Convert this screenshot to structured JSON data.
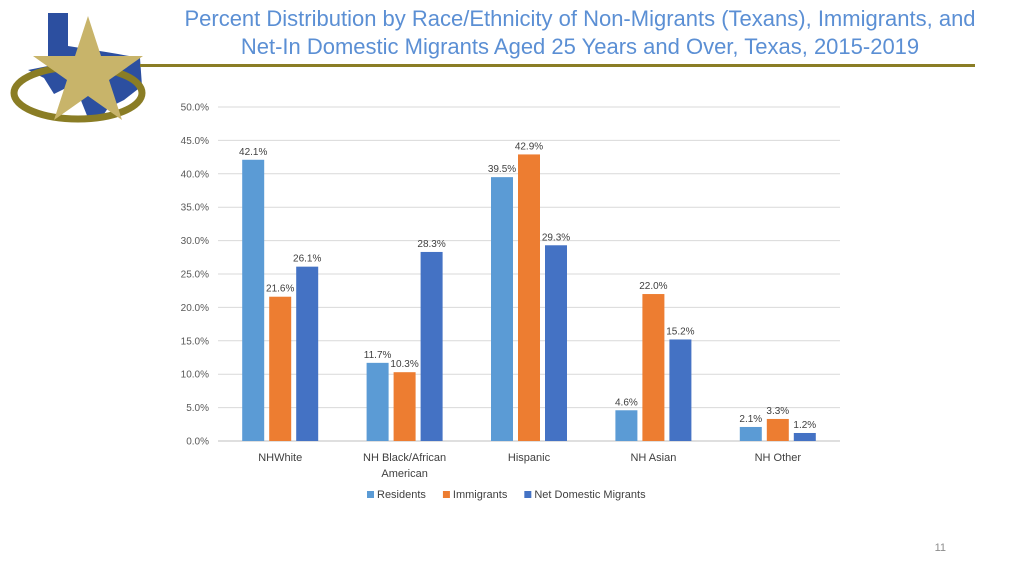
{
  "title_line1": "Percent Distribution by Race/Ethnicity of Non-Migrants (Texans), Immigrants, and",
  "title_line2": "Net-In Domestic Migrants Aged 25 Years and Over, Texas, 2015-2019",
  "page_number": "11",
  "logo": {
    "icon": "texas-star-logo-icon",
    "colors": {
      "star": "#c8b46a",
      "state": "#2c4fa0",
      "swoosh": "#8a7d25"
    }
  },
  "chart_data": {
    "type": "bar",
    "title": "Percent Distribution by Race/Ethnicity of Non-Migrants (Texans), Immigrants, and Net-In Domestic Migrants Aged 25 Years and Over, Texas, 2015-2019",
    "categories": [
      "NHWhite",
      "NH Black/African American",
      "Hispanic",
      "NH Asian",
      "NH Other"
    ],
    "category_lines": [
      [
        "NHWhite"
      ],
      [
        "NH Black/African",
        "American"
      ],
      [
        "Hispanic"
      ],
      [
        "NH Asian"
      ],
      [
        "NH Other"
      ]
    ],
    "series": [
      {
        "name": "Residents",
        "color": "#5b9bd5",
        "values": [
          42.1,
          11.7,
          39.5,
          4.6,
          2.1
        ]
      },
      {
        "name": "Immigrants",
        "color": "#ed7d31",
        "values": [
          21.6,
          10.3,
          42.9,
          22.0,
          3.3
        ]
      },
      {
        "name": "Net Domestic Migrants",
        "color": "#4472c4",
        "values": [
          26.1,
          28.3,
          29.3,
          15.2,
          1.2
        ]
      }
    ],
    "ylim": [
      0,
      50
    ],
    "yticks": [
      "0.0%",
      "5.0%",
      "10.0%",
      "15.0%",
      "20.0%",
      "25.0%",
      "30.0%",
      "35.0%",
      "40.0%",
      "45.0%",
      "50.0%"
    ],
    "ytick_values": [
      0,
      5,
      10,
      15,
      20,
      25,
      30,
      35,
      40,
      45,
      50
    ],
    "data_labels": [
      [
        "42.1%",
        "11.7%",
        "39.5%",
        "4.6%",
        "2.1%"
      ],
      [
        "21.6%",
        "10.3%",
        "42.9%",
        "22.0%",
        "3.3%"
      ],
      [
        "26.1%",
        "28.3%",
        "29.3%",
        "15.2%",
        "1.2%"
      ]
    ],
    "xlabel": "",
    "ylabel": "",
    "grid": true,
    "legend_position": "bottom"
  }
}
